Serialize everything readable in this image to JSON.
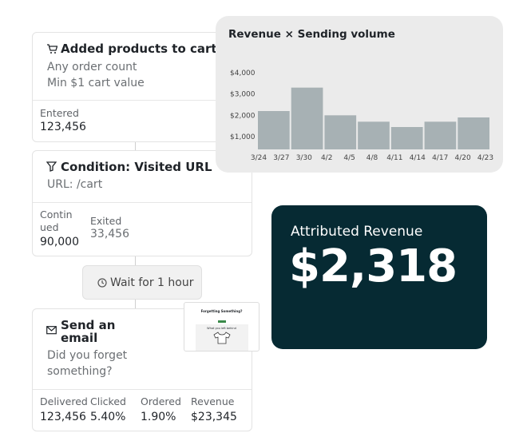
{
  "flow": {
    "trigger": {
      "title": "Added products to cart",
      "lines": [
        "Any order count",
        "Min $1 cart value"
      ],
      "stats": [
        {
          "label": "Entered",
          "value": "123,456"
        }
      ]
    },
    "condition": {
      "title": "Condition: Visited URL",
      "lines": [
        "URL: /cart"
      ],
      "stats": [
        {
          "label": "Contin ued",
          "value": "90,000"
        },
        {
          "label": "Exited",
          "value": "33,456"
        }
      ]
    },
    "wait": {
      "label": "Wait for 1 hour"
    },
    "email": {
      "title": "Send an email",
      "lines": [
        "Did you forget something?"
      ],
      "preview": {
        "heading": "Forgetting Something?",
        "subheading": "What you left behind"
      },
      "stats": [
        {
          "label": "Delivered",
          "value": "123,456"
        },
        {
          "label": "Clicked",
          "value": "5.40%"
        },
        {
          "label": "Ordered",
          "value": "1.90%"
        },
        {
          "label": "Revenue",
          "value": "$23,345"
        }
      ]
    }
  },
  "chart_data": {
    "type": "bar",
    "title": "Revenue × Sending volume",
    "values": [
      2200,
      3300,
      2000,
      1700,
      1450,
      1700,
      1900
    ],
    "color": "#a7b1b4",
    "xticks": [
      "3/24",
      "3/27",
      "3/30",
      "4/2",
      "4/5",
      "4/8",
      "4/11",
      "4/14",
      "4/17",
      "4/20",
      "4/23"
    ],
    "ylim": [
      400,
      4000
    ],
    "yticks": [
      {
        "value": 1000,
        "label": "$1,000"
      },
      {
        "value": 2000,
        "label": "$2,000"
      },
      {
        "value": 3000,
        "label": "$3,000"
      },
      {
        "value": 4000,
        "label": "$4,000"
      }
    ],
    "grid": false
  },
  "revenue_card": {
    "label": "Attributed Revenue",
    "value": "$2,318"
  }
}
